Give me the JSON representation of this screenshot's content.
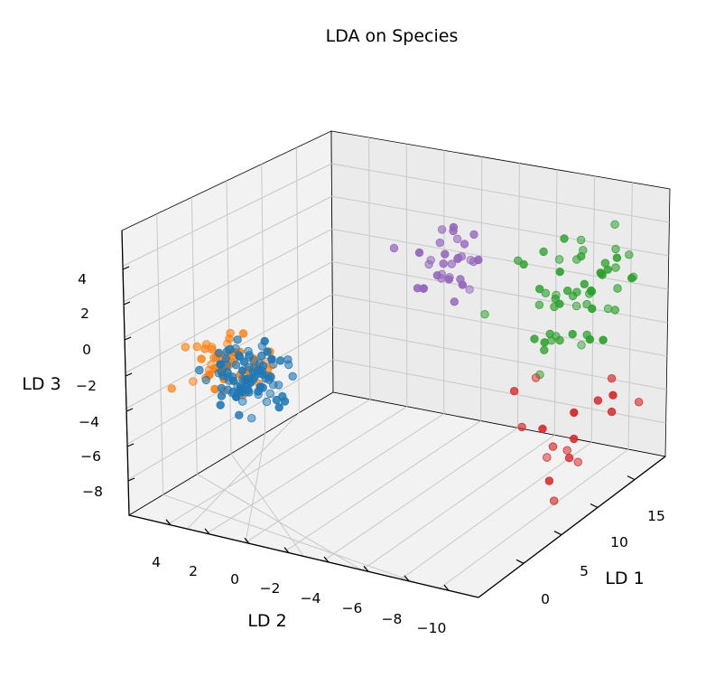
{
  "chart_data": {
    "type": "scatter",
    "title": "LDA on Species",
    "xlabel": "LD 1",
    "ylabel": "LD 2",
    "zlabel": "LD 3",
    "x_ticks": [
      "0",
      "5",
      "10",
      "15"
    ],
    "y_ticks": [
      "4",
      "2",
      "0",
      "−2",
      "−4",
      "−6",
      "−8",
      "−10"
    ],
    "z_ticks": [
      "4",
      "2",
      "0",
      "−2",
      "−4",
      "−6",
      "−8"
    ],
    "projection": "3d",
    "series": [
      {
        "color": "#ff7f0e",
        "centroid_ld1": -1,
        "centroid_ld2": 3,
        "centroid_ld3": -1,
        "count": 60
      },
      {
        "color": "#1f77b4",
        "centroid_ld1": -1,
        "centroid_ld2": 2,
        "centroid_ld3": -1.5,
        "count": 95
      },
      {
        "color": "#9467bd",
        "centroid_ld1": 5,
        "centroid_ld2": -3,
        "centroid_ld3": 5,
        "count": 32
      },
      {
        "color": "#2ca02c",
        "centroid_ld1": 13,
        "centroid_ld2": -4,
        "centroid_ld3": 2,
        "count": 55
      },
      {
        "color": "#d62728",
        "centroid_ld1": 9,
        "centroid_ld2": -6,
        "centroid_ld3": -5,
        "count": 18
      }
    ]
  }
}
